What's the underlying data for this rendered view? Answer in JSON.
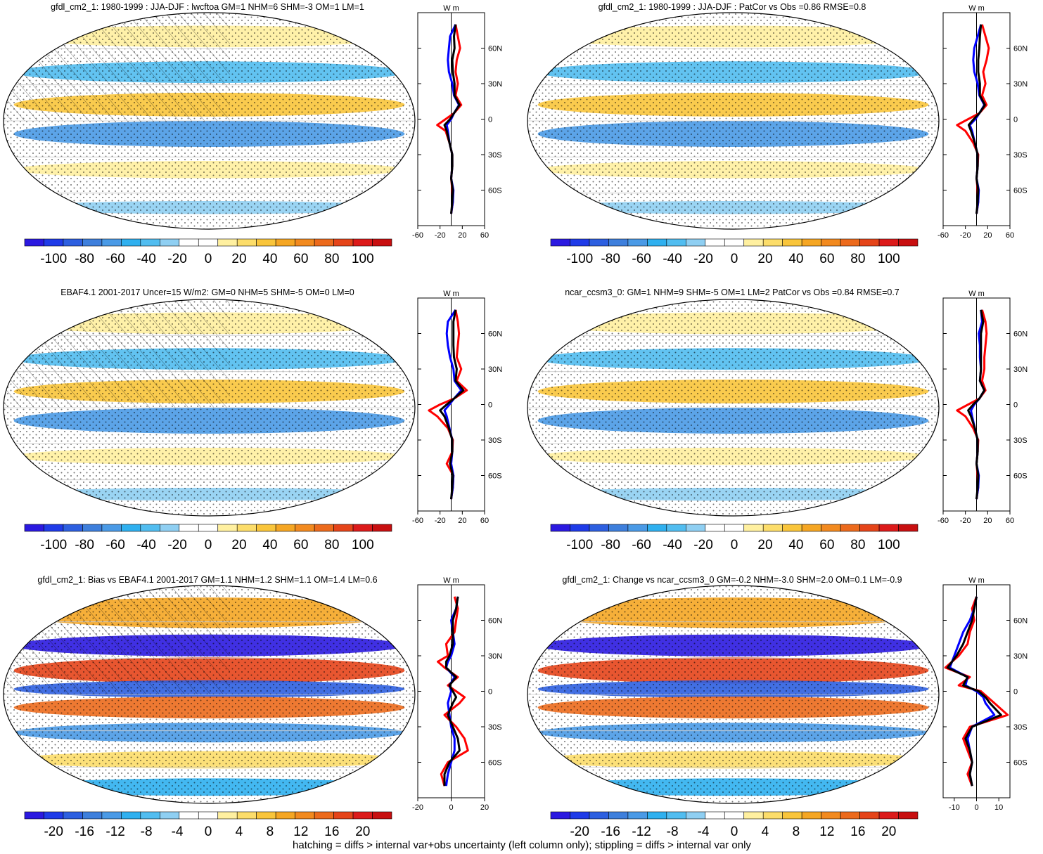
{
  "footer": "hatching = diffs > internal var+obs uncertainty (left column only); stippling = diffs > internal var only",
  "colorbar_colors": [
    "#2b19e0",
    "#1f3be8",
    "#2d5fe0",
    "#3e7fdc",
    "#4a9ae6",
    "#2fb0ef",
    "#51bdf0",
    "#8fcff2",
    "#ffffff",
    "#ffffff",
    "#fff0a0",
    "#fcdd6a",
    "#f9c53b",
    "#f5a623",
    "#f28a1f",
    "#ec6a1c",
    "#e54419",
    "#dc1a1a",
    "#c80f10"
  ],
  "colors": {
    "red": "#ff0000",
    "blue": "#0000ff",
    "black": "#000000"
  },
  "chart_data": [
    {
      "type": "heatmap",
      "title": "gfdl_cm2_1: 1980-1999 : JJA-DJF : lwcftoa GM=1 NHM=6 SHM=-3 OM=1 LM=1",
      "colorbar_ticks": [
        "-100",
        "-80",
        "-60",
        "-40",
        "-20",
        "0",
        "20",
        "40",
        "60",
        "80",
        "100"
      ],
      "profile": {
        "type": "line",
        "xlim": [
          -60,
          60
        ],
        "xticks": [
          "-60",
          "-20",
          "20",
          "60"
        ],
        "yticks": [
          "60N",
          "30N",
          "0",
          "30S",
          "60S"
        ],
        "units": "W m",
        "series": [
          {
            "color": "#ff0000",
            "lat": [
              80,
              70,
              60,
              50,
              40,
              30,
              20,
              12,
              5,
              0,
              -5,
              -10,
              -20,
              -30,
              -40,
              -50,
              -60,
              -70,
              -80
            ],
            "values": [
              8,
              12,
              16,
              10,
              8,
              12,
              8,
              18,
              5,
              -10,
              -25,
              -10,
              -3,
              2,
              2,
              0,
              2,
              3,
              0
            ]
          },
          {
            "color": "#0000ff",
            "lat": [
              80,
              70,
              60,
              50,
              40,
              30,
              20,
              12,
              5,
              0,
              -5,
              -10,
              -20,
              -30,
              -40,
              -50,
              -60,
              -70,
              -80
            ],
            "values": [
              8,
              -2,
              -4,
              -6,
              -4,
              2,
              5,
              14,
              5,
              0,
              -8,
              -6,
              -3,
              2,
              2,
              0,
              4,
              3,
              0
            ]
          },
          {
            "color": "#000000",
            "lat": [
              80,
              70,
              60,
              50,
              40,
              30,
              20,
              12,
              5,
              0,
              -5,
              -10,
              -20,
              -30,
              -40,
              -50,
              -60,
              -70,
              -80
            ],
            "values": [
              8,
              5,
              6,
              2,
              3,
              6,
              6,
              15,
              5,
              -2,
              -12,
              -8,
              -3,
              2,
              2,
              0,
              3,
              2,
              0
            ]
          }
        ]
      }
    },
    {
      "type": "heatmap",
      "title": "gfdl_cm2_1: 1980-1999 : JJA-DJF : PatCor vs Obs =0.86 RMSE=0.8",
      "colorbar_ticks": [
        "-100",
        "-80",
        "-60",
        "-40",
        "-20",
        "0",
        "20",
        "40",
        "60",
        "80",
        "100"
      ],
      "profile": {
        "type": "line",
        "xlim": [
          -60,
          60
        ],
        "xticks": [
          "-60",
          "-20",
          "20",
          "60"
        ],
        "yticks": [
          "60N",
          "30N",
          "0",
          "30S",
          "60S"
        ],
        "units": "W m",
        "series": [
          {
            "color": "#ff0000",
            "lat": [
              80,
              70,
              60,
              50,
              40,
              30,
              20,
              12,
              5,
              0,
              -5,
              -10,
              -20,
              -30,
              -40,
              -50,
              -60,
              -70,
              -80
            ],
            "values": [
              10,
              16,
              22,
              18,
              12,
              16,
              10,
              18,
              5,
              -15,
              -35,
              -20,
              -6,
              3,
              2,
              0,
              2,
              3,
              0
            ]
          },
          {
            "color": "#0000ff",
            "lat": [
              80,
              70,
              60,
              50,
              40,
              30,
              20,
              12,
              5,
              0,
              -5,
              -10,
              -20,
              -30,
              -40,
              -50,
              -60,
              -70,
              -80
            ],
            "values": [
              8,
              2,
              -4,
              -6,
              -4,
              2,
              5,
              14,
              5,
              -2,
              -12,
              -8,
              -3,
              2,
              2,
              0,
              4,
              3,
              0
            ]
          },
          {
            "color": "#000000",
            "lat": [
              80,
              70,
              60,
              50,
              40,
              30,
              20,
              12,
              5,
              0,
              -5,
              -10,
              -20,
              -30,
              -40,
              -50,
              -60,
              -70,
              -80
            ],
            "values": [
              8,
              6,
              5,
              3,
              3,
              6,
              6,
              15,
              5,
              -5,
              -14,
              -10,
              -3,
              2,
              2,
              0,
              3,
              2,
              0
            ]
          }
        ]
      }
    },
    {
      "type": "heatmap",
      "title": "EBAF4.1 2001-2017 Uncer=15 W/m2: GM=0 NHM=5 SHM=-5 OM=0 LM=0",
      "colorbar_ticks": [
        "-100",
        "-80",
        "-60",
        "-40",
        "-20",
        "0",
        "20",
        "40",
        "60",
        "80",
        "100"
      ],
      "profile": {
        "type": "line",
        "xlim": [
          -60,
          60
        ],
        "xticks": [
          "-60",
          "-20",
          "20",
          "60"
        ],
        "yticks": [
          "60N",
          "30N",
          "0",
          "30S",
          "60S"
        ],
        "units": "W m",
        "series": [
          {
            "color": "#ff0000",
            "lat": [
              80,
              70,
              60,
              50,
              40,
              30,
              20,
              12,
              5,
              0,
              -5,
              -10,
              -20,
              -30,
              -40,
              -50,
              -60,
              -70,
              -80
            ],
            "values": [
              8,
              12,
              14,
              12,
              10,
              18,
              10,
              28,
              5,
              -20,
              -40,
              -25,
              -6,
              3,
              2,
              -8,
              4,
              3,
              0
            ]
          },
          {
            "color": "#0000ff",
            "lat": [
              80,
              70,
              60,
              50,
              40,
              30,
              20,
              12,
              5,
              0,
              -5,
              -10,
              -20,
              -30,
              -40,
              -50,
              -60,
              -70,
              -80
            ],
            "values": [
              8,
              -6,
              -8,
              -6,
              -2,
              4,
              6,
              18,
              5,
              -3,
              -12,
              -8,
              -3,
              2,
              2,
              0,
              4,
              3,
              0
            ]
          },
          {
            "color": "#000000",
            "lat": [
              80,
              70,
              60,
              50,
              40,
              30,
              20,
              12,
              5,
              0,
              -5,
              -10,
              -20,
              -30,
              -40,
              -50,
              -60,
              -70,
              -80
            ],
            "values": [
              8,
              4,
              4,
              4,
              5,
              10,
              8,
              22,
              5,
              -8,
              -20,
              -12,
              -4,
              2,
              2,
              -2,
              3,
              2,
              0
            ]
          }
        ]
      }
    },
    {
      "type": "heatmap",
      "title": "ncar_ccsm3_0: GM=1 NHM=9 SHM=-5 OM=1 LM=2 PatCor vs Obs =0.84 RMSE=0.7",
      "colorbar_ticks": [
        "-100",
        "-80",
        "-60",
        "-40",
        "-20",
        "0",
        "20",
        "40",
        "60",
        "80",
        "100"
      ],
      "profile": {
        "type": "line",
        "xlim": [
          -60,
          60
        ],
        "xticks": [
          "-60",
          "-20",
          "20",
          "60"
        ],
        "yticks": [
          "60N",
          "30N",
          "0",
          "30S",
          "60S"
        ],
        "units": "W m",
        "series": [
          {
            "color": "#ff0000",
            "lat": [
              80,
              70,
              60,
              50,
              40,
              30,
              20,
              12,
              5,
              0,
              -5,
              -10,
              -20,
              -30,
              -40,
              -50,
              -60,
              -70,
              -80
            ],
            "values": [
              10,
              16,
              18,
              16,
              14,
              14,
              10,
              16,
              5,
              -15,
              -35,
              -20,
              -6,
              3,
              2,
              0,
              2,
              3,
              0
            ]
          },
          {
            "color": "#0000ff",
            "lat": [
              80,
              70,
              60,
              50,
              40,
              30,
              20,
              12,
              5,
              0,
              -5,
              -10,
              -20,
              -30,
              -40,
              -50,
              -60,
              -70,
              -80
            ],
            "values": [
              8,
              10,
              4,
              6,
              6,
              8,
              6,
              14,
              5,
              -4,
              -10,
              -8,
              -3,
              2,
              2,
              0,
              4,
              3,
              0
            ]
          },
          {
            "color": "#000000",
            "lat": [
              80,
              70,
              60,
              50,
              40,
              30,
              20,
              12,
              5,
              0,
              -5,
              -10,
              -20,
              -30,
              -40,
              -50,
              -60,
              -70,
              -80
            ],
            "values": [
              8,
              12,
              8,
              8,
              8,
              8,
              6,
              14,
              5,
              -6,
              -15,
              -10,
              -3,
              2,
              2,
              0,
              3,
              2,
              0
            ]
          }
        ]
      }
    },
    {
      "type": "heatmap",
      "title": "gfdl_cm2_1: Bias vs EBAF4.1 2001-2017 GM=1.1 NHM=1.2 SHM=1.1 OM=1.4 LM=0.6",
      "colorbar_ticks": [
        "-20",
        "-16",
        "-12",
        "-8",
        "-4",
        "0",
        "4",
        "8",
        "12",
        "16",
        "20"
      ],
      "profile": {
        "type": "line",
        "xlim": [
          -20,
          20
        ],
        "xticks": [
          "-20",
          "0",
          "20"
        ],
        "yticks": [
          "60N",
          "30N",
          "0",
          "30S",
          "60S"
        ],
        "units": "W m",
        "series": [
          {
            "color": "#ff0000",
            "lat": [
              80,
              70,
              60,
              50,
              40,
              30,
              25,
              20,
              12,
              5,
              0,
              -5,
              -10,
              -20,
              -30,
              -40,
              -50,
              -60,
              -70,
              -80
            ],
            "values": [
              2,
              4,
              3,
              2,
              -3,
              -2,
              -8,
              -4,
              4,
              -2,
              3,
              8,
              5,
              -4,
              3,
              8,
              10,
              -2,
              -6,
              -4
            ]
          },
          {
            "color": "#0000ff",
            "lat": [
              80,
              70,
              60,
              50,
              40,
              30,
              25,
              20,
              12,
              5,
              0,
              -5,
              -10,
              -20,
              -30,
              -40,
              -50,
              -60,
              -70,
              -80
            ],
            "values": [
              4,
              3,
              0,
              1,
              2,
              0,
              -2,
              -3,
              2,
              -1,
              0,
              -1,
              -2,
              -1,
              0,
              2,
              2,
              0,
              -2,
              -3
            ]
          },
          {
            "color": "#000000",
            "lat": [
              80,
              70,
              60,
              50,
              40,
              30,
              25,
              20,
              12,
              5,
              0,
              -5,
              -10,
              -20,
              -30,
              -40,
              -50,
              -60,
              -70,
              -80
            ],
            "values": [
              4,
              3,
              1,
              1,
              1,
              -1,
              -3,
              -3,
              3,
              -1,
              1,
              3,
              1,
              -2,
              1,
              4,
              5,
              -1,
              -4,
              -4
            ]
          }
        ]
      }
    },
    {
      "type": "heatmap",
      "title": "gfdl_cm2_1: Change vs ncar_ccsm3_0 GM=-0.2 NHM=-3.0 SHM=2.0 OM=0.1 LM=-0.9",
      "colorbar_ticks": [
        "-20",
        "-16",
        "-12",
        "-8",
        "-4",
        "0",
        "4",
        "8",
        "12",
        "16",
        "20"
      ],
      "profile": {
        "type": "line",
        "xlim": [
          -15,
          15
        ],
        "xticks": [
          "-10",
          "0",
          "10"
        ],
        "yticks": [
          "60N",
          "30N",
          "0",
          "30S",
          "60S"
        ],
        "units": "W m",
        "series": [
          {
            "color": "#ff0000",
            "lat": [
              80,
              70,
              60,
              50,
              40,
              30,
              20,
              12,
              5,
              0,
              -5,
              -10,
              -20,
              -30,
              -40,
              -50,
              -60,
              -70,
              -80
            ],
            "values": [
              0,
              -2,
              -1,
              -3,
              -4,
              -8,
              -14,
              -3,
              -8,
              2,
              5,
              8,
              14,
              -3,
              -6,
              -4,
              -2,
              -4,
              -2
            ]
          },
          {
            "color": "#0000ff",
            "lat": [
              80,
              70,
              60,
              50,
              40,
              30,
              20,
              12,
              5,
              0,
              -5,
              -10,
              -20,
              -30,
              -40,
              -50,
              -60,
              -70,
              -80
            ],
            "values": [
              0,
              -1,
              -3,
              -6,
              -8,
              -10,
              -12,
              -4,
              -5,
              0,
              3,
              4,
              8,
              -2,
              -4,
              -3,
              -2,
              -3,
              -2
            ]
          },
          {
            "color": "#000000",
            "lat": [
              80,
              70,
              60,
              50,
              40,
              30,
              20,
              12,
              5,
              0,
              -5,
              -10,
              -20,
              -30,
              -40,
              -50,
              -60,
              -70,
              -80
            ],
            "values": [
              0,
              -1,
              -2,
              -4,
              -6,
              -9,
              -13,
              -4,
              -6,
              1,
              4,
              6,
              11,
              -2,
              -5,
              -3,
              -2,
              -3,
              -2
            ]
          }
        ]
      }
    }
  ]
}
